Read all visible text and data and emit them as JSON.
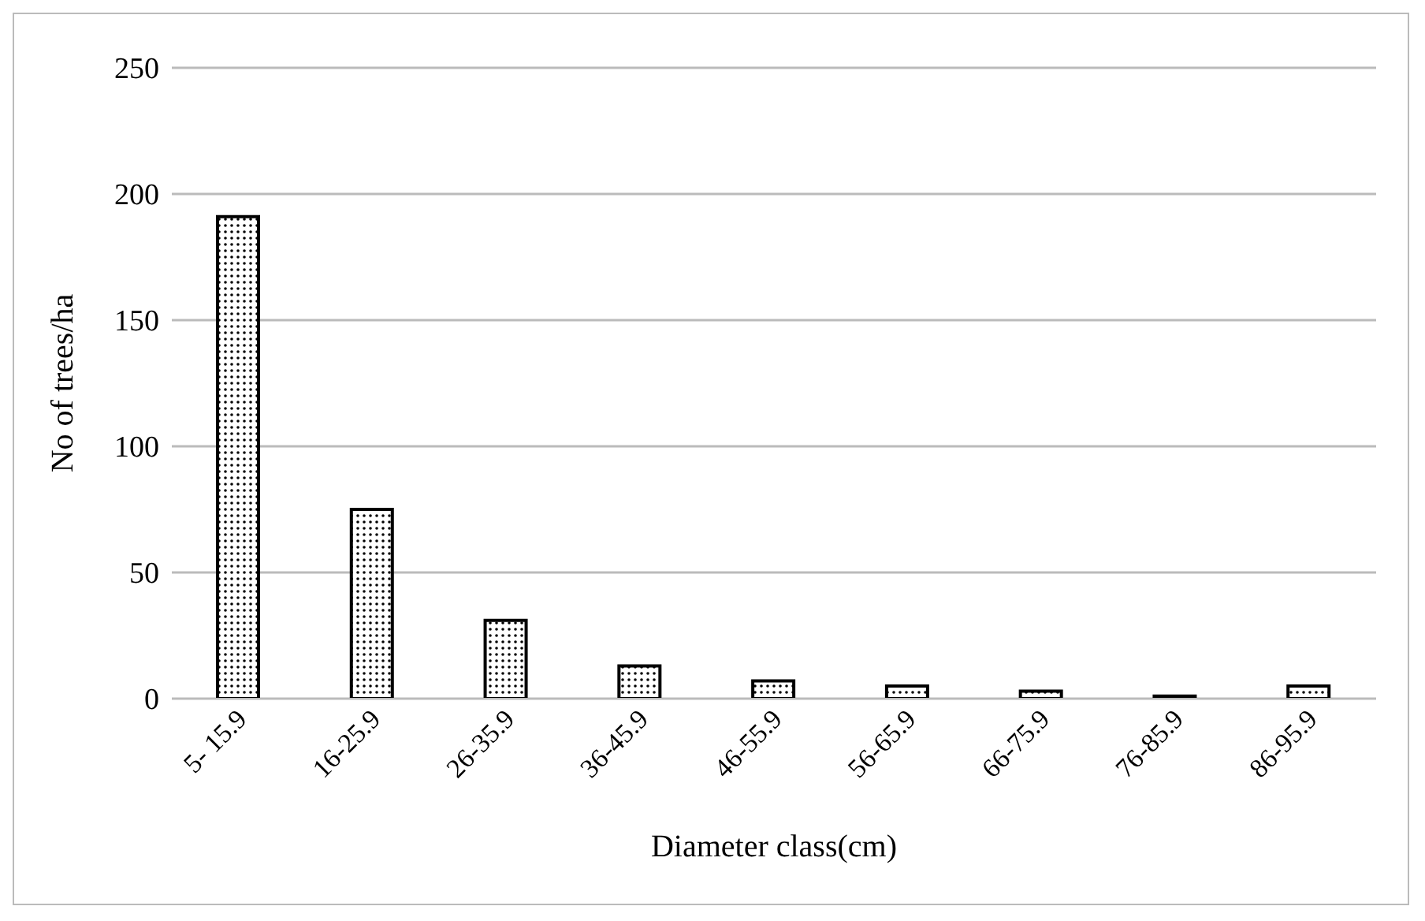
{
  "chart_data": {
    "type": "bar",
    "xlabel": "Diameter class(cm)",
    "ylabel": "No of trees/ha",
    "categories": [
      "5- 15.9",
      "16-25.9",
      "26-35.9",
      "36-45.9",
      "46-55.9",
      "56-65.9",
      "66-75.9",
      "76-85.9",
      "86-95.9"
    ],
    "values": [
      191,
      75,
      31,
      13,
      7,
      5,
      3,
      1,
      5
    ],
    "color": "#000000",
    "ylim": [
      0,
      250
    ],
    "yticks": [
      0,
      50,
      100,
      150,
      200,
      250
    ],
    "grid": "y"
  }
}
